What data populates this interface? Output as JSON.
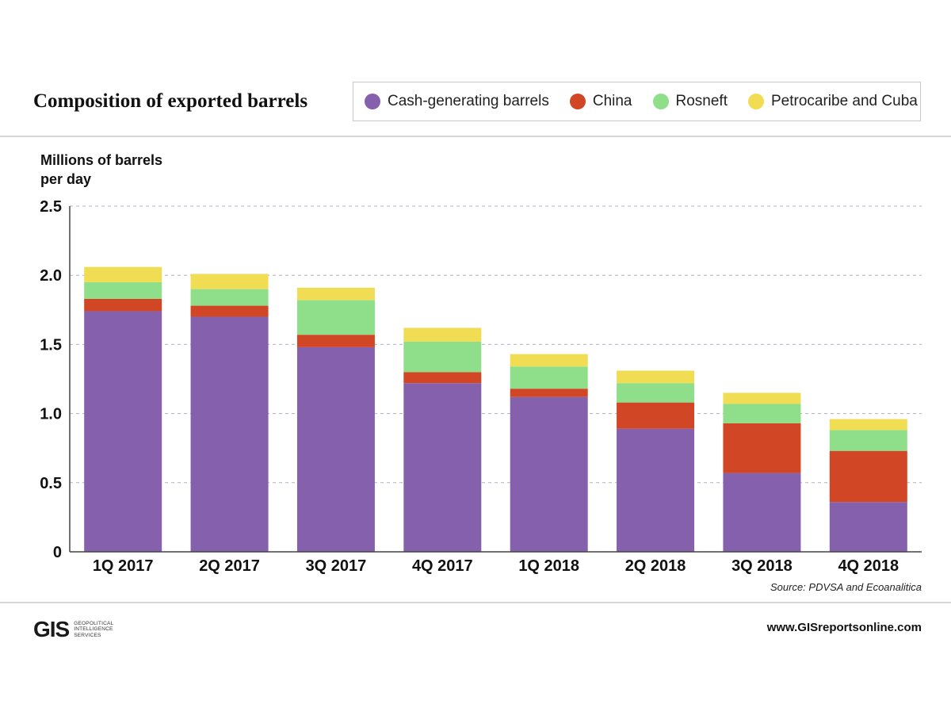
{
  "header": {
    "title": "Composition of exported barrels"
  },
  "legend": [
    {
      "label": "Cash-generating barrels",
      "color": "#8561ad"
    },
    {
      "label": "China",
      "color": "#d14624"
    },
    {
      "label": "Rosneft",
      "color": "#8fdf8a"
    },
    {
      "label": "Petrocaribe and Cuba",
      "color": "#f0dd54"
    }
  ],
  "chart_data": {
    "type": "bar",
    "stacked": true,
    "title": "Composition of exported barrels",
    "ylabel": "Millions of barrels per day",
    "xlabel": "",
    "ylim": [
      0,
      2.5
    ],
    "yticks": [
      "0",
      "0.5",
      "1.0",
      "1.5",
      "2.0",
      "2.5"
    ],
    "ytick_values": [
      0,
      0.5,
      1.0,
      1.5,
      2.0,
      2.5
    ],
    "grid": true,
    "legend_position": "top-right",
    "categories": [
      "1Q 2017",
      "2Q 2017",
      "3Q 2017",
      "4Q 2017",
      "1Q 2018",
      "2Q 2018",
      "3Q 2018",
      "4Q 2018"
    ],
    "series": [
      {
        "name": "Cash-generating barrels",
        "color": "#8561ad",
        "values": [
          1.74,
          1.7,
          1.48,
          1.22,
          1.12,
          0.89,
          0.57,
          0.36
        ]
      },
      {
        "name": "China",
        "color": "#d14624",
        "values": [
          0.09,
          0.08,
          0.09,
          0.08,
          0.06,
          0.19,
          0.36,
          0.37
        ]
      },
      {
        "name": "Rosneft",
        "color": "#8fdf8a",
        "values": [
          0.12,
          0.12,
          0.25,
          0.22,
          0.16,
          0.14,
          0.14,
          0.15
        ]
      },
      {
        "name": "Petrocaribe and Cuba",
        "color": "#f0dd54",
        "values": [
          0.11,
          0.11,
          0.09,
          0.1,
          0.09,
          0.09,
          0.08,
          0.08
        ]
      }
    ]
  },
  "yaxis_label_lines": [
    "Millions of barrels",
    "per day"
  ],
  "source": "Source: PDVSA and Ecoanalitica",
  "footer": {
    "logo_mark": "GIS",
    "logo_text": "GEOPOLITICAL\nINTELLIGENCE\nSERVICES",
    "website": "www.GISreportsonline.com"
  }
}
